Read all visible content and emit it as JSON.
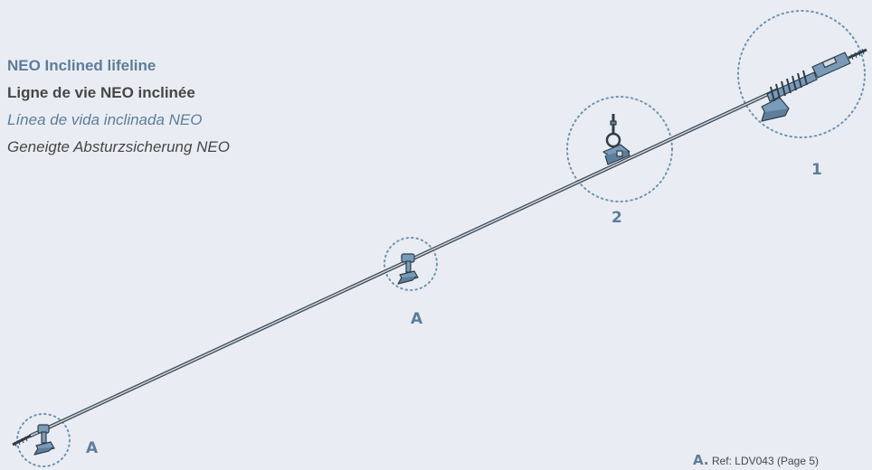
{
  "titles": {
    "en": "NEO Inclined lifeline",
    "fr": "Ligne de vie NEO inclinée",
    "es": "Línea de vida inclinada NEO",
    "de": "Geneigte Absturzsicherung NEO"
  },
  "callouts": {
    "component_1": "1",
    "component_2": "2",
    "anchor_a_middle": "A",
    "anchor_a_bottom": "A"
  },
  "reference": {
    "letter": "A.",
    "text": "Ref: LDV043 (Page 5)"
  },
  "colors": {
    "background": "#e9edf3",
    "accent": "#5d7d99",
    "text": "#464646",
    "part_fill": "#7a9bb8",
    "part_stroke": "#2f3d4a"
  }
}
